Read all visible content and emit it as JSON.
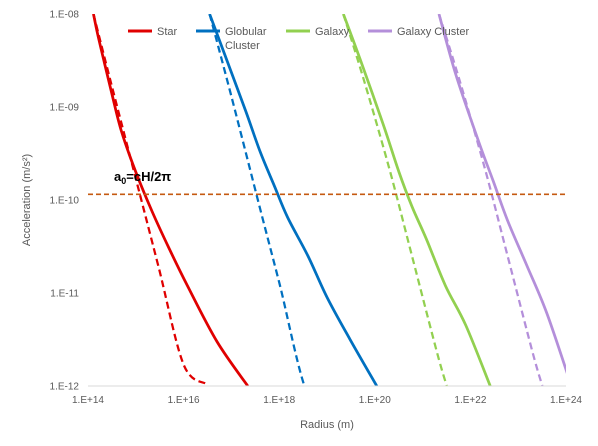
{
  "chart_data": {
    "type": "line",
    "title": "",
    "xlabel": "Radius (m)",
    "ylabel": "Acceleration (m/s²)",
    "x_scale": "log",
    "y_scale": "log",
    "xlim": [
      100000000000000.0,
      1e+24
    ],
    "ylim": [
      1e-12,
      1e-08
    ],
    "x_ticks": [
      "1.E+14",
      "1.E+16",
      "1.E+18",
      "1.E+20",
      "1.E+22",
      "1.E+24"
    ],
    "y_ticks": [
      "1.E-12",
      "1.E-11",
      "1.E-10",
      "1.E-09",
      "1.E-08"
    ],
    "grid": false,
    "legend_position": "top",
    "annotation": {
      "base": "a",
      "sub": "0",
      "rest": "=cH/2π",
      "x": 350000000000000.0,
      "y": 1.6e-10
    },
    "reference_line": {
      "value": 1.15e-10,
      "color": "#C55A11",
      "style": "dashed"
    },
    "series": [
      {
        "name": "Star",
        "color": "#E00000",
        "solid": {
          "x": [
            130000000000000.0,
            160000000000000.0,
            220000000000000.0,
            320000000000000.0,
            500000000000000.0,
            1000000000000000.0,
            2200000000000000.0,
            5000000000000000.0,
            1.2e+16,
            5e+16,
            2.2e+17
          ],
          "y": [
            1e-08,
            6e-09,
            3e-09,
            1.35e-09,
            5.5e-10,
            2e-10,
            7.5e-11,
            3e-11,
            1.2e-11,
            3e-12,
            1e-12
          ]
        },
        "dashed": {
          "x": [
            130000000000000.0,
            300000000000000.0,
            1000000000000000.0,
            3000000000000000.0,
            1e+16,
            3e+16
          ],
          "y": [
            1e-08,
            1.85e-09,
            1.7e-10,
            1.9e-11,
            1.7e-12,
            1.05e-12
          ]
        }
      },
      {
        "name": "Globular Cluster",
        "color": "#0070C0",
        "solid": {
          "x": [
            3.5e+16,
            8e+16,
            2e+17,
            4e+17,
            8e+17,
            1.5e+18,
            4e+18,
            1e+19,
            3e+19,
            1.1e+20
          ],
          "y": [
            1e-08,
            3.2e-09,
            9e-10,
            3.3e-10,
            1.4e-10,
            6.5e-11,
            2.5e-11,
            9e-12,
            3.2e-12,
            1e-12
          ]
        },
        "dashed": {
          "x": [
            3.5e+16,
            1e+17,
            4e+17,
            1e+18,
            4e+18,
            1.2e+19
          ],
          "y": [
            1e-08,
            1.3e-09,
            8e-11,
            1.3e-11,
            8e-13,
            1e-12
          ]
        }
      },
      {
        "name": "Galaxy",
        "color": "#92D050",
        "solid": {
          "x": [
            2.2e+19,
            5e+19,
            1.5e+20,
            3.2e+20,
            6e+20,
            1.2e+21,
            3e+21,
            8e+21,
            2.6e+22
          ],
          "y": [
            1e-08,
            3.2e-09,
            6.5e-10,
            2e-10,
            8.5e-11,
            3.8e-11,
            1.2e-11,
            4.5e-12,
            1e-12
          ]
        },
        "dashed": {
          "x": [
            2.2e+19,
            6e+19,
            2e+20,
            6e+20,
            2e+21,
            3.2e+21
          ],
          "y": [
            1e-08,
            1.9e-09,
            2.2e-10,
            2.5e-11,
            2.3e-12,
            1e-12
          ]
        }
      },
      {
        "name": "Galaxy Cluster",
        "color": "#B48FDA",
        "solid": {
          "x": [
            2.2e+21,
            5e+21,
            1.5e+22,
            3e+22,
            6e+22,
            1.5e+23,
            4e+23,
            1.3e+24
          ],
          "y": [
            1e-08,
            2.2e-09,
            4.2e-10,
            1.6e-10,
            6e-11,
            2e-11,
            6e-12,
            1e-12
          ]
        },
        "dashed": {
          "x": [
            2.2e+21,
            6e+21,
            2e+22,
            6e+22,
            2e+23,
            3.2e+23
          ],
          "y": [
            1e-08,
            1.9e-09,
            2.2e-10,
            2.5e-11,
            2.3e-12,
            1e-12
          ]
        }
      }
    ]
  }
}
